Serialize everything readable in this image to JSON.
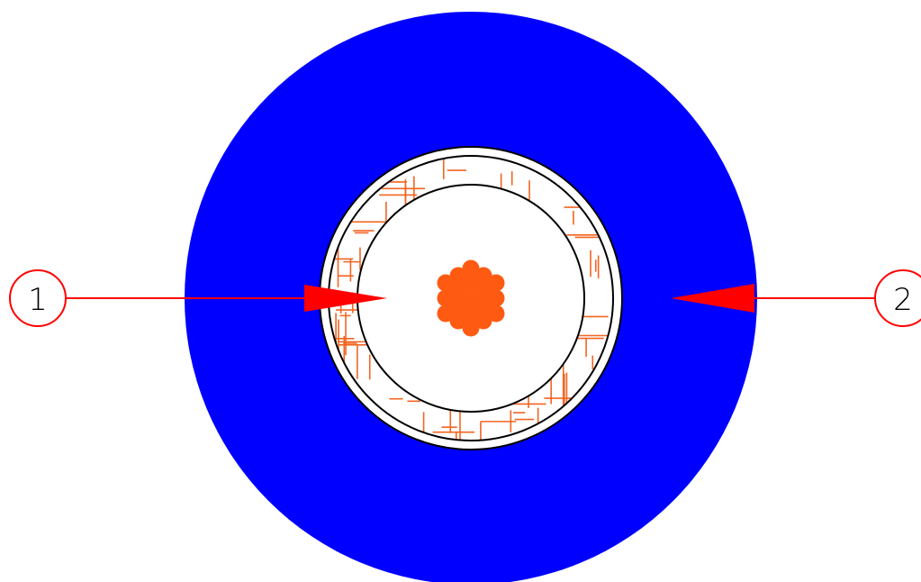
{
  "diagram": {
    "callouts": [
      {
        "id": "callout-1",
        "label": "1"
      },
      {
        "id": "callout-2",
        "label": "2"
      }
    ]
  },
  "colors": {
    "outer_jacket": "#0000ff",
    "braid_shield": "#f26522",
    "conductor": "#ff5a12",
    "callout": "#ff0000",
    "outline": "#000000",
    "background": "#ffffff"
  }
}
